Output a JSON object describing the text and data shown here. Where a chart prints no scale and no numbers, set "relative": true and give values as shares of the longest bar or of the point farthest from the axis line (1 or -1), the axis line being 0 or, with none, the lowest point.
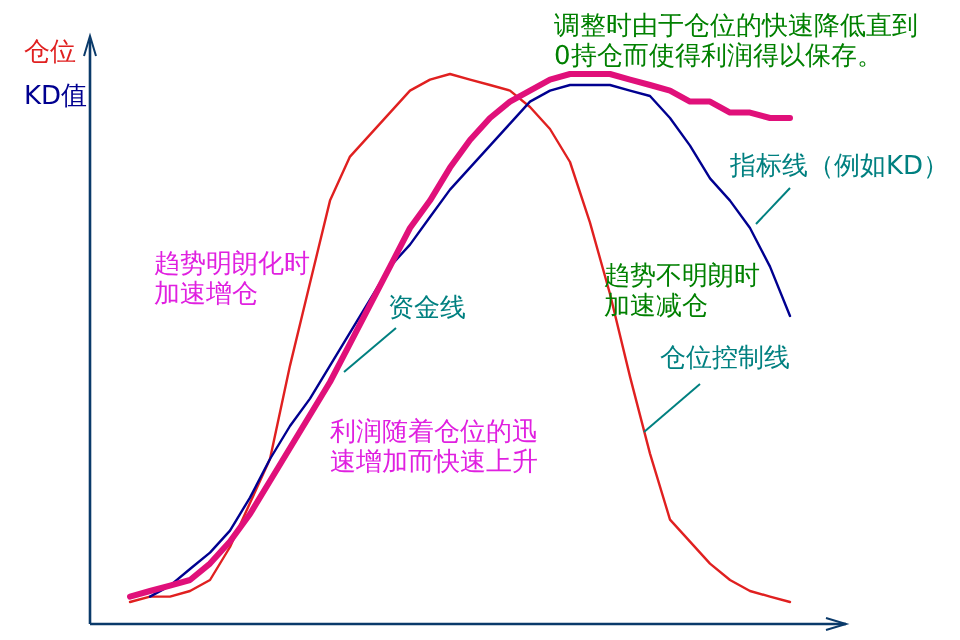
{
  "chart_data": {
    "type": "line",
    "relative": true,
    "ylabel": "仓位",
    "categories": [
      null,
      null,
      null,
      null,
      null,
      null,
      null,
      null,
      null,
      null,
      null,
      null,
      null,
      null,
      null,
      null,
      null,
      null,
      null,
      null,
      null,
      null,
      null,
      null,
      null,
      null,
      null,
      null,
      null,
      null,
      null,
      null,
      null,
      null
    ],
    "series": [
      {
        "name": "仓位控制线",
        "color": "#e02020",
        "values": [
          0.04,
          0.05,
          0.05,
          0.06,
          0.08,
          0.14,
          0.22,
          0.3,
          0.47,
          0.62,
          0.77,
          0.85,
          0.89,
          0.93,
          0.97,
          0.99,
          1,
          0.99,
          0.98,
          0.97,
          0.94,
          0.9,
          0.84,
          0.73,
          0.6,
          0.45,
          0.31,
          0.19,
          0.15,
          0.11,
          0.08,
          0.06,
          0.05,
          0.04
        ]
      },
      {
        "name": "指标线（例如KD）",
        "color": "#000090",
        "values": [
          null,
          0.05,
          0.07,
          0.1,
          0.13,
          0.17,
          0.23,
          0.3,
          0.36,
          0.41,
          0.47,
          0.53,
          0.59,
          0.65,
          0.69,
          0.74,
          0.79,
          0.83,
          0.87,
          0.91,
          0.95,
          0.97,
          0.98,
          0.98,
          0.98,
          0.97,
          0.96,
          0.92,
          0.87,
          0.81,
          0.77,
          0.72,
          0.65,
          0.56
        ]
      },
      {
        "name": "资金线",
        "color": "#e0107a",
        "values": [
          0.05,
          0.06,
          0.07,
          0.08,
          0.11,
          0.15,
          0.2,
          0.26,
          0.32,
          0.38,
          0.44,
          0.51,
          0.58,
          0.65,
          0.72,
          0.77,
          0.83,
          0.88,
          0.92,
          0.95,
          0.97,
          0.99,
          1,
          1,
          1,
          0.99,
          0.98,
          0.97,
          0.95,
          0.95,
          0.93,
          0.93,
          0.92,
          0.92
        ]
      }
    ],
    "annotations": [
      "KD值",
      "调整时由于仓位的快速降低直到0持仓而使得利润得以保存。",
      "趋势明朗化时加速增仓",
      "趋势不明朗时加速减仓",
      "利润随着仓位的迅速增加而快速上升"
    ]
  }
}
